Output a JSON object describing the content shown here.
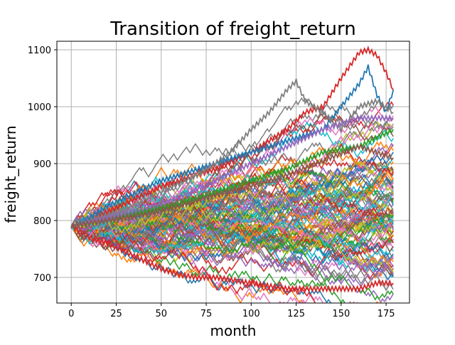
{
  "chart_data": {
    "type": "line",
    "title": "Transition of freight_return",
    "xlabel": "month",
    "ylabel": "freight_return",
    "xlim": [
      -8,
      188
    ],
    "ylim": [
      655,
      1115
    ],
    "xticks": [
      0,
      25,
      50,
      75,
      100,
      125,
      150,
      175
    ],
    "yticks": [
      700,
      800,
      900,
      1000,
      1100
    ],
    "grid": true,
    "n_series": 100,
    "start_value": 790,
    "n_points": 180,
    "colors": [
      "#1f77b4",
      "#ff7f0e",
      "#2ca02c",
      "#d62728",
      "#9467bd",
      "#8c564b",
      "#e377c2",
      "#7f7f7f",
      "#bcbd22",
      "#17becf"
    ],
    "key_series": [
      {
        "color": "#d62728",
        "note": "highest path",
        "x": [
          0,
          10,
          20,
          30,
          40,
          50,
          60,
          70,
          80,
          90,
          100,
          110,
          120,
          130,
          140,
          150,
          160,
          165,
          170,
          175,
          179
        ],
        "y": [
          790,
          800,
          815,
          830,
          845,
          860,
          870,
          880,
          890,
          905,
          920,
          940,
          960,
          990,
          1000,
          1050,
          1095,
          1100,
          1090,
          1060,
          1030
        ]
      },
      {
        "color": "#1f77b4",
        "note": "second-highest path",
        "x": [
          0,
          10,
          20,
          30,
          40,
          50,
          60,
          70,
          80,
          90,
          100,
          110,
          120,
          130,
          140,
          150,
          160,
          165,
          170,
          175,
          179
        ],
        "y": [
          790,
          805,
          825,
          840,
          855,
          870,
          880,
          890,
          900,
          910,
          920,
          930,
          940,
          950,
          960,
          1000,
          1040,
          1070,
          1020,
          990,
          1030
        ]
      },
      {
        "color": "#7f7f7f",
        "note": "peak near month 125",
        "x": [
          0,
          10,
          20,
          30,
          40,
          50,
          60,
          70,
          80,
          90,
          100,
          110,
          120,
          125,
          130,
          140,
          150,
          160,
          170,
          179
        ],
        "y": [
          790,
          800,
          810,
          820,
          835,
          850,
          865,
          880,
          900,
          925,
          960,
          990,
          1030,
          1045,
          1010,
          990,
          960,
          1000,
          1010,
          990
        ]
      },
      {
        "color": "#d62728",
        "note": "lowest path",
        "x": [
          0,
          10,
          20,
          30,
          40,
          50,
          60,
          70,
          80,
          90,
          100,
          110,
          120,
          130,
          140,
          150,
          160,
          170,
          179
        ],
        "y": [
          790,
          770,
          760,
          745,
          730,
          715,
          705,
          700,
          700,
          695,
          690,
          685,
          680,
          680,
          680,
          680,
          680,
          690,
          690
        ]
      },
      {
        "color": "#9467bd",
        "note": "upper path",
        "x": [
          0,
          20,
          40,
          60,
          80,
          100,
          120,
          140,
          160,
          179
        ],
        "y": [
          790,
          805,
          820,
          840,
          870,
          900,
          930,
          960,
          980,
          980
        ]
      },
      {
        "color": "#2ca02c",
        "note": "upper path",
        "x": [
          0,
          20,
          40,
          60,
          80,
          100,
          120,
          140,
          160,
          179
        ],
        "y": [
          790,
          800,
          815,
          830,
          850,
          870,
          890,
          920,
          930,
          960
        ]
      },
      {
        "color": "#8c564b",
        "note": "upper path",
        "x": [
          0,
          20,
          40,
          60,
          80,
          100,
          120,
          140,
          160,
          179
        ],
        "y": [
          790,
          800,
          810,
          825,
          845,
          860,
          880,
          905,
          930,
          910
        ]
      }
    ]
  }
}
